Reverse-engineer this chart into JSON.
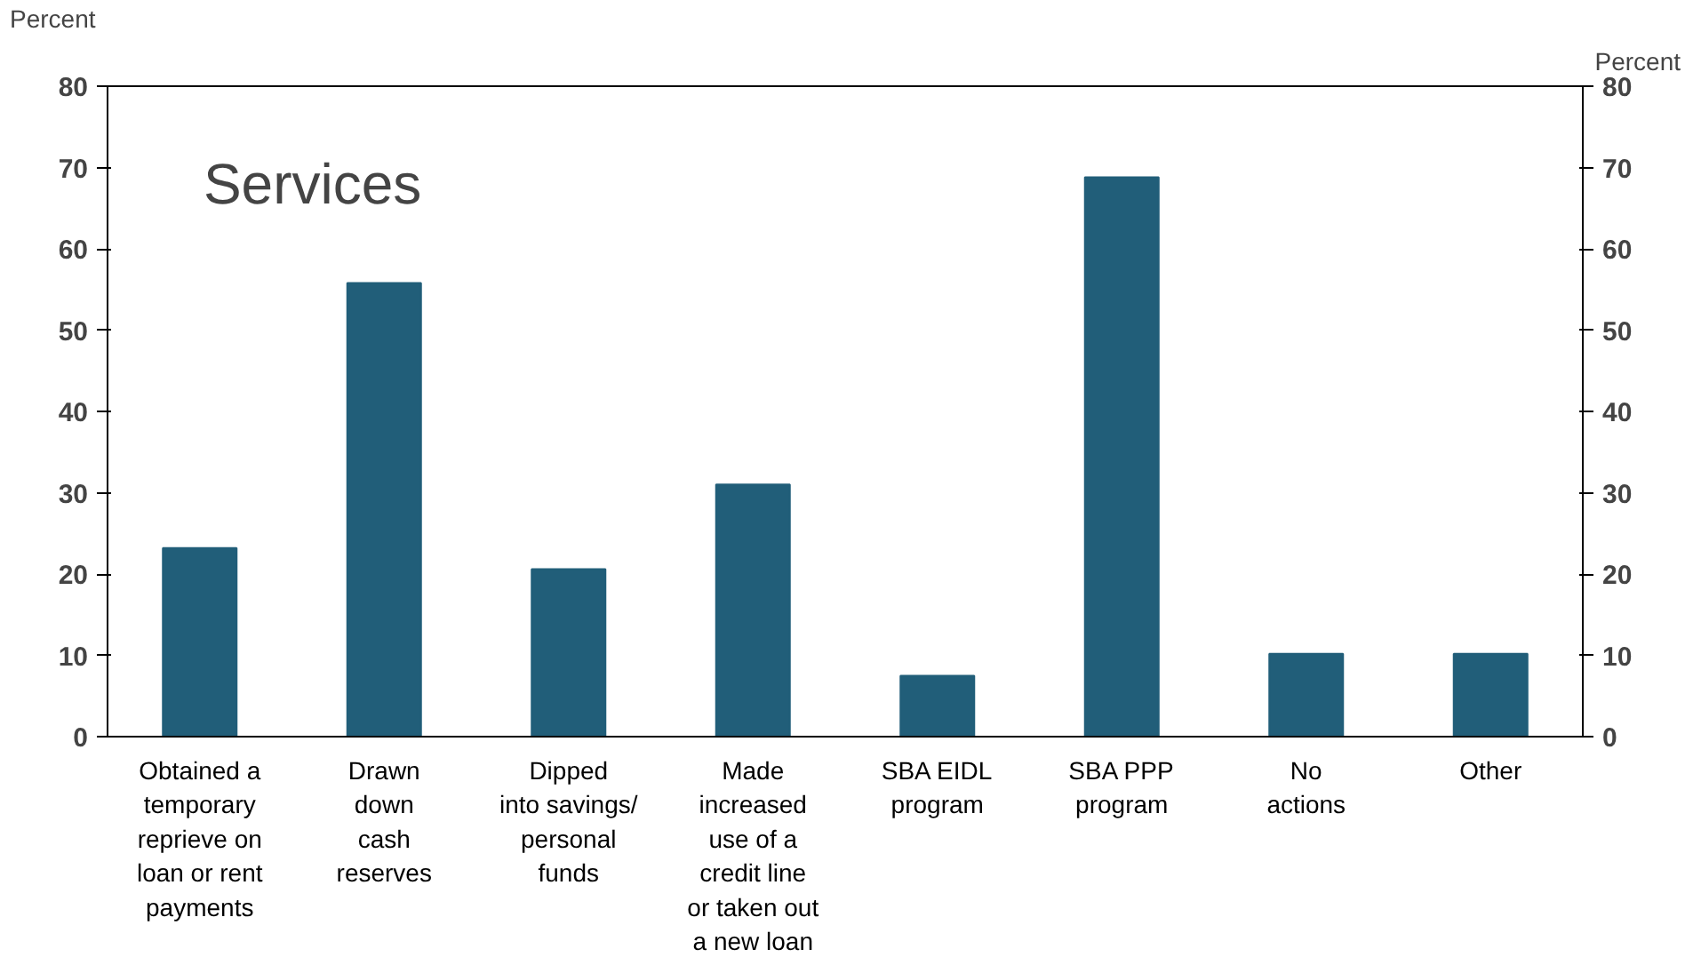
{
  "chart_data": {
    "type": "bar",
    "ylabel": "Percent",
    "y2label": "Percent",
    "annotations": [
      "Services"
    ],
    "categories": [
      "Obtained a\ntemporary\nreprieve on\nloan or rent\npayments",
      "Drawn\ndown\ncash\nreserves",
      "Dipped\ninto savings/\npersonal\nfunds",
      "Made\nincreased\nuse of a\ncredit line\nor taken out\na new loan",
      "SBA EIDL\nprogram",
      "SBA PPP\nprogram",
      "No\nactions",
      "Other"
    ],
    "values": [
      23.2,
      55.8,
      20.6,
      31.0,
      7.5,
      68.8,
      10.2,
      10.2
    ],
    "color": "#215e79",
    "ylim": [
      0,
      80
    ],
    "yticks": [
      0,
      10,
      20,
      30,
      40,
      50,
      60,
      70,
      80
    ],
    "y2lim": [
      0,
      80
    ],
    "y2ticks": [
      0,
      10,
      20,
      30,
      40,
      50,
      60,
      70,
      80
    ],
    "grid": false
  }
}
